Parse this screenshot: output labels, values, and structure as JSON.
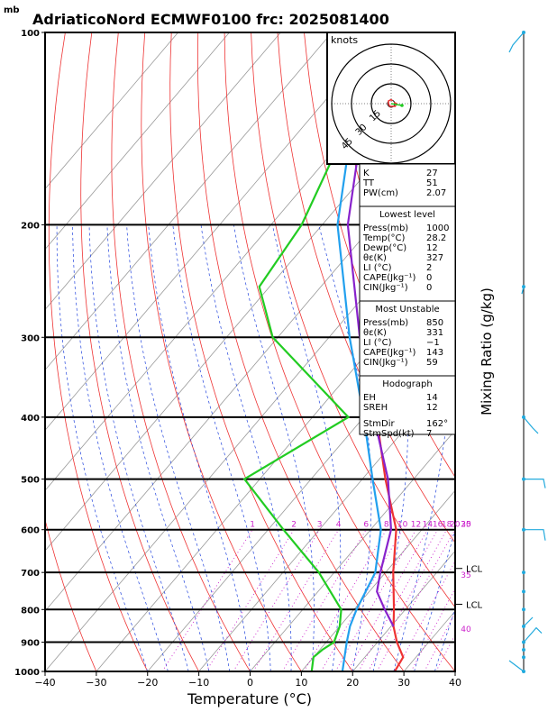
{
  "header": {
    "unit_mb": "mb",
    "title": "AdriaticoNord ECMWF0100 frc: 2025081400"
  },
  "axes": {
    "xlabel": "Temperature (°C)",
    "ylabel_right": "Mixing Ratio (g/kg)"
  },
  "hodograph": {
    "unit": "knots",
    "rings": [
      "15",
      "30",
      "45"
    ]
  },
  "lcl_label": "LCL",
  "index_table": {
    "top": [
      {
        "k": "K",
        "v": "27"
      },
      {
        "k": "TT",
        "v": "51"
      },
      {
        "k": "PW(cm)",
        "v": "2.07"
      }
    ],
    "lowest_title": "Lowest level",
    "lowest": [
      {
        "k": "Press(mb)",
        "v": "1000"
      },
      {
        "k": "Temp(°C)",
        "v": "28.2"
      },
      {
        "k": "Dewp(°C)",
        "v": "12"
      },
      {
        "k": "θε(K)",
        "v": "327"
      },
      {
        "k": "LI (°C)",
        "v": "2"
      },
      {
        "k": "CAPE(Jkg⁻¹)",
        "v": "0"
      },
      {
        "k": "CIN(Jkg⁻¹)",
        "v": "0"
      }
    ],
    "mu_title": "Most Unstable",
    "mu": [
      {
        "k": "Press(mb)",
        "v": "850"
      },
      {
        "k": "θε(K)",
        "v": "331"
      },
      {
        "k": "LI (°C)",
        "v": "−1"
      },
      {
        "k": "CAPE(Jkg⁻¹)",
        "v": "143"
      },
      {
        "k": "CIN(Jkg⁻¹)",
        "v": "59"
      }
    ],
    "hodo_title": "Hodograph",
    "hodo": [
      {
        "k": "EH",
        "v": "14"
      },
      {
        "k": "SREH",
        "v": "12"
      },
      {
        "k": "StmDir",
        "v": "162°"
      },
      {
        "k": "StmSpd(kt)",
        "v": "7"
      }
    ]
  },
  "colors": {
    "temperature": "#ee3333",
    "dewpoint": "#22cc22",
    "parcel": "#8822cc",
    "virtual": "#22a0ee",
    "dry_adiabat": "#ee3333",
    "moist_adiabat": "#2244dd",
    "mixing_ratio": "#cc22cc",
    "isotherm": "#999999",
    "wind": "#22aadd"
  },
  "chart_data": {
    "type": "line",
    "chart_kind": "skew-T log-P",
    "title": "AdriaticoNord ECMWF0100 frc: 2025081400",
    "xlabel": "Temperature (°C)",
    "xlim": [
      -40,
      40
    ],
    "x_ticks": [
      "−40",
      "−30",
      "−20",
      "−10",
      "0",
      "10",
      "20",
      "30",
      "40"
    ],
    "ylim": [
      1000,
      100
    ],
    "y_scale": "log",
    "y_ticks": [
      "100",
      "200",
      "300",
      "400",
      "500",
      "600",
      "700",
      "800",
      "900",
      "1000"
    ],
    "mixing_ratio_labels": [
      "1",
      "2",
      "3",
      "4",
      "6",
      "8",
      "10",
      "12",
      "14",
      "16",
      "18",
      "20",
      "25",
      "30",
      "35",
      "40"
    ],
    "series": [
      {
        "key": "temperature",
        "points": [
          [
            1000,
            28.2
          ],
          [
            950,
            27.5
          ],
          [
            900,
            23.8
          ],
          [
            850,
            20.5
          ],
          [
            800,
            17.8
          ],
          [
            700,
            11.5
          ],
          [
            600,
            5
          ],
          [
            500,
            -5.5
          ],
          [
            400,
            -17.5
          ],
          [
            300,
            -32
          ],
          [
            250,
            -41
          ],
          [
            200,
            -47
          ],
          [
            150,
            -55
          ],
          [
            100,
            -64
          ]
        ]
      },
      {
        "key": "dewpoint",
        "points": [
          [
            1000,
            12
          ],
          [
            950,
            10
          ],
          [
            925,
            10.5
          ],
          [
            900,
            11.5
          ],
          [
            850,
            10
          ],
          [
            800,
            7.5
          ],
          [
            700,
            -3
          ],
          [
            600,
            -17
          ],
          [
            500,
            -33
          ],
          [
            400,
            -23
          ],
          [
            300,
            -51
          ],
          [
            250,
            -62
          ],
          [
            200,
            -64
          ],
          [
            150,
            -70
          ],
          [
            100,
            -78
          ]
        ]
      },
      {
        "key": "parcel",
        "points": [
          [
            850,
            20.5
          ],
          [
            800,
            16
          ],
          [
            750,
            11.5
          ],
          [
            700,
            9
          ],
          [
            600,
            4
          ],
          [
            500,
            -5
          ],
          [
            400,
            -18
          ],
          [
            300,
            -34
          ],
          [
            200,
            -55
          ],
          [
            150,
            -66
          ],
          [
            120,
            -73
          ]
        ]
      },
      {
        "key": "virtual",
        "points": [
          [
            1000,
            18
          ],
          [
            900,
            14
          ],
          [
            850,
            12
          ],
          [
            800,
            10.5
          ],
          [
            700,
            8
          ],
          [
            600,
            2
          ],
          [
            500,
            -8
          ],
          [
            400,
            -20
          ],
          [
            300,
            -36
          ],
          [
            200,
            -57
          ],
          [
            150,
            -68
          ],
          [
            100,
            -82
          ]
        ]
      }
    ],
    "lcl_pressures_mb": [
      690,
      785
    ],
    "hodograph_points": [
      [
        2,
        1
      ],
      [
        4,
        0
      ],
      [
        3,
        -2
      ],
      [
        -1,
        -2
      ],
      [
        -2,
        0
      ],
      [
        -2,
        2
      ],
      [
        0,
        3
      ],
      [
        1,
        2
      ]
    ]
  }
}
